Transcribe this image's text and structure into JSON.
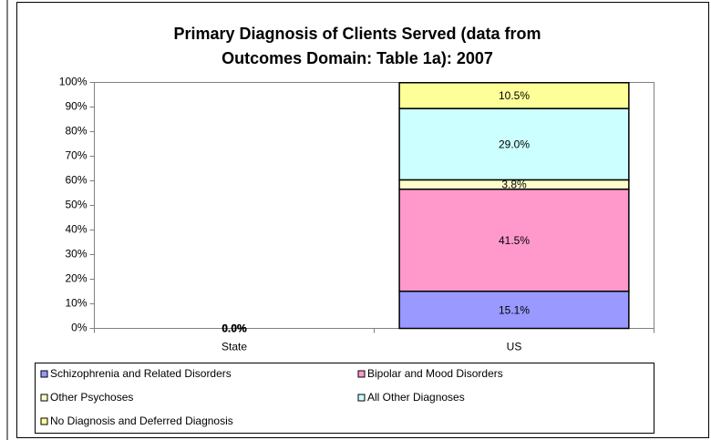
{
  "chart_data": {
    "type": "stacked_bar",
    "title": [
      "Primary Diagnosis of Clients Served (data from",
      "Outcomes Domain: Table 1a): 2007"
    ],
    "categories": [
      "State",
      "US"
    ],
    "series": [
      {
        "name": "Schizophrenia and Related Disorders",
        "color": "#9999ff",
        "values": [
          0,
          15.1
        ],
        "value_labels": [
          "0.0%",
          "15.1%"
        ]
      },
      {
        "name": "Bipolar and Mood Disorders",
        "color": "#ff99cc",
        "values": [
          0,
          41.5
        ],
        "value_labels": [
          "0.0%",
          "41.5%"
        ]
      },
      {
        "name": "Other Psychoses",
        "color": "#ffffcc",
        "values": [
          0,
          3.8
        ],
        "value_labels": [
          "0.0%",
          "3.8%"
        ]
      },
      {
        "name": "All Other Diagnoses",
        "color": "#ccffff",
        "values": [
          0,
          29.0
        ],
        "value_labels": [
          "0.0%",
          "29.0%"
        ]
      },
      {
        "name": "No Diagnosis and Deferred Diagnosis",
        "color": "#ffff99",
        "values": [
          0,
          10.5
        ],
        "value_labels": [
          "0.0%",
          "10.5%"
        ]
      }
    ],
    "ylim": [
      0,
      100
    ],
    "yticks": [
      {
        "value": 0,
        "label": "0%"
      },
      {
        "value": 10,
        "label": "10%"
      },
      {
        "value": 20,
        "label": "20%"
      },
      {
        "value": 30,
        "label": "30%"
      },
      {
        "value": 40,
        "label": "40%"
      },
      {
        "value": 50,
        "label": "50%"
      },
      {
        "value": 60,
        "label": "60%"
      },
      {
        "value": 70,
        "label": "70%"
      },
      {
        "value": 80,
        "label": "80%"
      },
      {
        "value": 90,
        "label": "90%"
      },
      {
        "value": 100,
        "label": "100%"
      }
    ],
    "grid": false,
    "legend": "bottom"
  }
}
